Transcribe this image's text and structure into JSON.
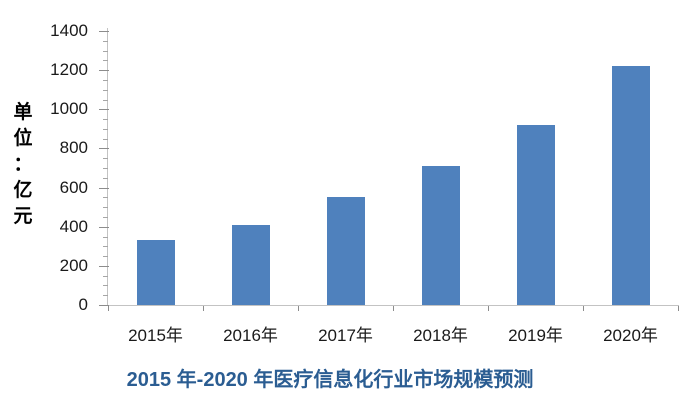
{
  "chart_data": {
    "type": "bar",
    "title": "2015 年-2020 年医疗信息化行业市场规模预测",
    "categories": [
      "2015年",
      "2016年",
      "2017年",
      "2018年",
      "2019年",
      "2020年"
    ],
    "values": [
      330,
      410,
      550,
      710,
      920,
      1220
    ],
    "xlabel": "",
    "ylabel": "单位：亿元",
    "ylim": [
      0,
      1400
    ],
    "yticks": [
      0,
      200,
      400,
      600,
      800,
      1000,
      1200,
      1400
    ],
    "minor_tick_interval": 50,
    "grid": false,
    "legend": "none",
    "colors": {
      "bar": "#4F81BD",
      "title": "#2B5D92",
      "axis": "#C3C3C3",
      "tick": "#8C8C8C",
      "label_text": "#1A1A1A"
    }
  }
}
